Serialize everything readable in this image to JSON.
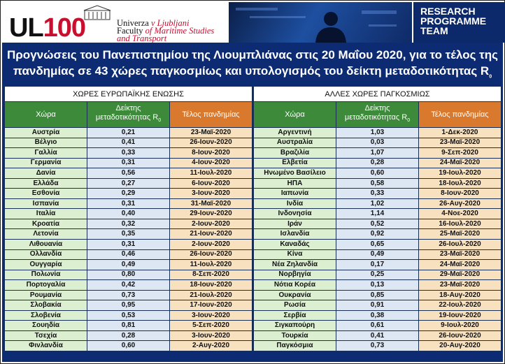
{
  "header": {
    "logo_text_ul": "UL",
    "logo_text_100": "100",
    "university_line1_plain": "Univerza",
    "university_line1_italic": "v Ljubljani",
    "university_line2_plain": "Faculty",
    "university_line2_italic": "of Maritime Studies",
    "university_line3_italic": "and Transport",
    "team_line1": "RESEARCH",
    "team_line2": "PROGRAMME",
    "team_line3": "TEAM"
  },
  "title": {
    "line1": "Προγνώσεις του Πανεπιστημίου της Λιουμπλιάνας στις 20 Μαΐου 2020, για το τέλος της",
    "line2": "πανδημίας σε 43 χώρες παγκοσμίως και υπολογισμός του δείκτη μεταδοτικότητας R",
    "line2_sub": "0"
  },
  "left_table": {
    "group_header": "ΧΩΡΕΣ ΕΥΡΩΠΑΪΚΗΣ ΕΝΩΣΗΣ",
    "col_country": "Χώρα",
    "col_index": "Δείκτης μεταδοτικότητας R",
    "col_index_sub": "0",
    "col_end": "Τέλος πανδημίας",
    "rows": [
      [
        "Αυστρία",
        "0,21",
        "23-Μαϊ-2020"
      ],
      [
        "Βέλγιο",
        "0,41",
        "26-Ιουν-2020"
      ],
      [
        "Γαλλία",
        "0,33",
        "8-Ιουν-2020"
      ],
      [
        "Γερμανία",
        "0,31",
        "4-Ιουν-2020"
      ],
      [
        "Δανία",
        "0,56",
        "11-Ιουλ-2020"
      ],
      [
        "Ελλάδα",
        "0,27",
        "6-Ιουν-2020"
      ],
      [
        "Εσθονία",
        "0,29",
        "3-Ιουν-2020"
      ],
      [
        "Ισπανία",
        "0,31",
        "31-Μαϊ-2020"
      ],
      [
        "Ιταλία",
        "0,40",
        "29-Ιουν-2020"
      ],
      [
        "Κροατία",
        "0,32",
        "2-Ιουν-2020"
      ],
      [
        "Λετονία",
        "0,35",
        "21-Ιουν-2020"
      ],
      [
        "Λιθουανία",
        "0,31",
        "2-Ιουν-2020"
      ],
      [
        "Ολλανδία",
        "0,46",
        "26-Ιουν-2020"
      ],
      [
        "Ουγγαρία",
        "0,49",
        "11-Ιουλ-2020"
      ],
      [
        "Πολωνία",
        "0,80",
        "8-Σεπ-2020"
      ],
      [
        "Πορτογαλία",
        "0,42",
        "18-Ιουν-2020"
      ],
      [
        "Ρουμανία",
        "0,73",
        "21-Ιουλ-2020"
      ],
      [
        "Σλοβακία",
        "0,95",
        "17-Ιουν-2020"
      ],
      [
        "Σλοβενία",
        "0,53",
        "3-Ιουν-2020"
      ],
      [
        "Σουηδία",
        "0,81",
        "5-Σεπ-2020"
      ],
      [
        "Τσεχία",
        "0,28",
        "3-Ιουν-2020"
      ],
      [
        "Φινλανδία",
        "0,60",
        "2-Αυγ-2020"
      ]
    ]
  },
  "right_table": {
    "group_header": "ΑΛΛΕΣ ΧΩΡΕΣ ΠΑΓΚΟΣΜΙΩΣ",
    "col_country": "Χώρα",
    "col_index": "Δείκτης μεταδοτικότητας R",
    "col_index_sub": "0",
    "col_end": "Τέλος πανδημίας",
    "rows": [
      [
        "Αργεντινή",
        "1,03",
        "1-Δεκ-2020"
      ],
      [
        "Αυστραλία",
        "0,03",
        "23-Μαϊ-2020"
      ],
      [
        "Βραζιλία",
        "1,07",
        "9-Σεπ-2020"
      ],
      [
        "Ελβετία",
        "0,28",
        "24-Μαϊ-2020"
      ],
      [
        "Ηνωμένο Βασίλειο",
        "0,60",
        "19-Ιουλ-2020"
      ],
      [
        "ΗΠΑ",
        "0,58",
        "18-Ιουλ-2020"
      ],
      [
        "Ιαπωνία",
        "0,33",
        "8-Ιουν-2020"
      ],
      [
        "Ινδία",
        "1,02",
        "26-Αυγ-2020"
      ],
      [
        "Ινδονησία",
        "1,14",
        "4-Νοε-2020"
      ],
      [
        "Ιράν",
        "0,52",
        "16-Ιουλ-2020"
      ],
      [
        "Ισλανδία",
        "0,92",
        "25-Μαϊ-2020"
      ],
      [
        "Καναδάς",
        "0,65",
        "26-Ιουλ-2020"
      ],
      [
        "Κίνα",
        "0,49",
        "23-Μαϊ-2020"
      ],
      [
        "Νέα Ζηλανδία",
        "0,17",
        "24-Μαϊ-2020"
      ],
      [
        "Νορβηγία",
        "0,25",
        "29-Μαϊ-2020"
      ],
      [
        "Νότια Κορέα",
        "0,13",
        "23-Μαϊ-2020"
      ],
      [
        "Ουκρανία",
        "0,85",
        "18-Αυγ-2020"
      ],
      [
        "Ρωσία",
        "0,91",
        "22-Ιουλ-2020"
      ],
      [
        "Σερβία",
        "0,38",
        "19-Ιουν-2020"
      ],
      [
        "Σιγκαπούρη",
        "0,61",
        "9-Ιουλ-2020"
      ],
      [
        "Τουρκία",
        "0,41",
        "26-Ιουν-2020"
      ],
      [
        "Παγκόσμια",
        "0,73",
        "20-Αυγ-2020"
      ]
    ]
  }
}
